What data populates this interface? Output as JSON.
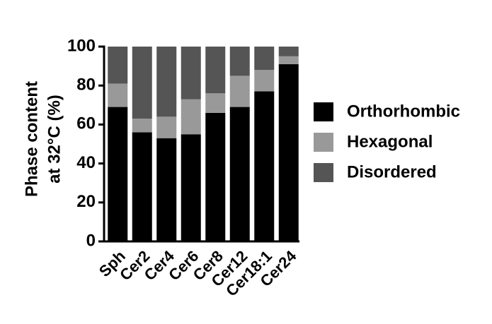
{
  "chart_data": {
    "type": "stacked-bar",
    "ylabel": [
      "Phase content",
      "at 32°C (%)"
    ],
    "categories": [
      "Sph",
      "Cer2",
      "Cer4",
      "Cer6",
      "Cer8",
      "Cer12",
      "Cer18:1",
      "Cer24"
    ],
    "series": [
      {
        "name": "Orthorhombic",
        "color": "#000000",
        "values": [
          69,
          56,
          53,
          55,
          66,
          69,
          77,
          91
        ]
      },
      {
        "name": "Hexagonal",
        "color": "#999999",
        "values": [
          12,
          7,
          11,
          18,
          10,
          16,
          11,
          4
        ]
      },
      {
        "name": "Disordered",
        "color": "#555555",
        "values": [
          19,
          37,
          36,
          27,
          24,
          15,
          12,
          5
        ]
      }
    ],
    "ylim": [
      0,
      100
    ],
    "yticks": [
      0,
      20,
      40,
      60,
      80,
      100
    ],
    "grid": false,
    "legend": "right"
  }
}
